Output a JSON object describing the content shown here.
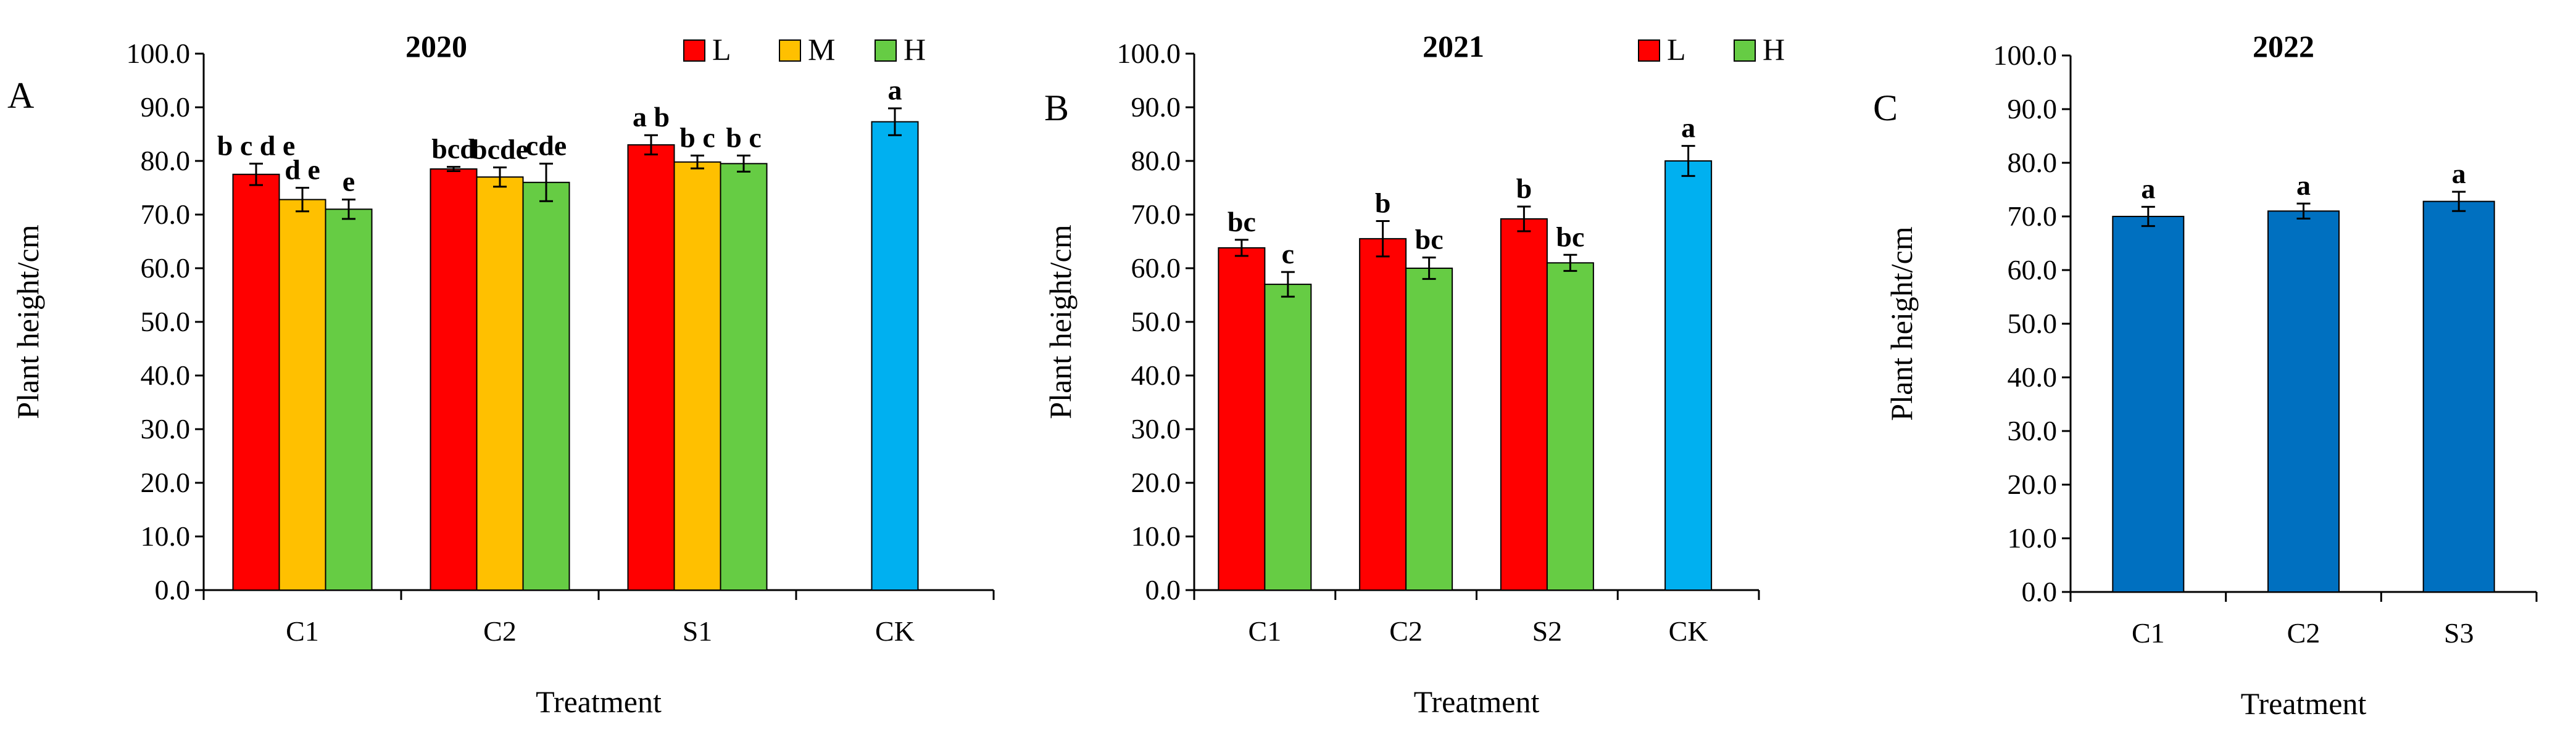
{
  "chart_data": [
    {
      "type": "bar",
      "panel": "A",
      "title": "2020",
      "xlabel": "Treatment",
      "ylabel": "Plant height/cm",
      "ylim": [
        0,
        100
      ],
      "ytick_step": 10,
      "ytick_labels": [
        "0.0",
        "10.0",
        "20.0",
        "30.0",
        "40.0",
        "50.0",
        "60.0",
        "70.0",
        "80.0",
        "90.0",
        "100.0"
      ],
      "grid": false,
      "legend_position": "top-center",
      "legend": [
        "L",
        "M",
        "H"
      ],
      "categories": [
        "C1",
        "C2",
        "S1",
        "CK"
      ],
      "series": [
        {
          "name": "L",
          "color": "#FF0000",
          "values": [
            77.5,
            78.5,
            83.0,
            null
          ],
          "errors": [
            2.0,
            0.4,
            1.8,
            null
          ],
          "labels": [
            "b c d e",
            "bcd",
            "a b",
            null
          ]
        },
        {
          "name": "M",
          "color": "#FFC000",
          "values": [
            72.8,
            77.0,
            79.8,
            null
          ],
          "errors": [
            2.2,
            1.8,
            1.2,
            null
          ],
          "labels": [
            "d e",
            "bcde",
            "b c",
            null
          ]
        },
        {
          "name": "H",
          "color": "#66CC44",
          "values": [
            71.0,
            76.0,
            79.5,
            null
          ],
          "errors": [
            1.8,
            3.5,
            1.5,
            null
          ],
          "labels": [
            "e",
            "cde",
            "b c",
            null
          ]
        },
        {
          "name": "CK",
          "color": "#00B0F0",
          "values": [
            null,
            null,
            null,
            87.3
          ],
          "errors": [
            null,
            null,
            null,
            2.5
          ],
          "labels": [
            null,
            null,
            null,
            "a"
          ]
        }
      ]
    },
    {
      "type": "bar",
      "panel": "B",
      "title": "2021",
      "xlabel": "Treatment",
      "ylabel": "Plant height/cm",
      "ylim": [
        0,
        100
      ],
      "ytick_step": 10,
      "ytick_labels": [
        "0.0",
        "10.0",
        "20.0",
        "30.0",
        "40.0",
        "50.0",
        "60.0",
        "70.0",
        "80.0",
        "90.0",
        "100.0"
      ],
      "grid": false,
      "legend_position": "top-center",
      "legend": [
        "L",
        "H"
      ],
      "categories": [
        "C1",
        "C2",
        "S2",
        "CK"
      ],
      "series": [
        {
          "name": "L",
          "color": "#FF0000",
          "values": [
            63.8,
            65.5,
            69.2,
            null
          ],
          "errors": [
            1.5,
            3.3,
            2.3,
            null
          ],
          "labels": [
            "bc",
            "b",
            "b",
            null
          ]
        },
        {
          "name": "H",
          "color": "#66CC44",
          "values": [
            57.0,
            60.0,
            61.0,
            null
          ],
          "errors": [
            2.3,
            2.0,
            1.5,
            null
          ],
          "labels": [
            "c",
            "bc",
            "bc",
            null
          ]
        },
        {
          "name": "CK",
          "color": "#00B0F0",
          "values": [
            null,
            null,
            null,
            80.0
          ],
          "errors": [
            null,
            null,
            null,
            2.8
          ],
          "labels": [
            null,
            null,
            null,
            "a"
          ]
        }
      ]
    },
    {
      "type": "bar",
      "panel": "C",
      "title": "2022",
      "xlabel": "Treatment",
      "ylabel": "Plant height/cm",
      "ylim": [
        0,
        100
      ],
      "ytick_step": 10,
      "ytick_labels": [
        "0.0",
        "10.0",
        "20.0",
        "30.0",
        "40.0",
        "50.0",
        "60.0",
        "70.0",
        "80.0",
        "90.0",
        "100.0"
      ],
      "grid": false,
      "legend": [],
      "categories": [
        "C1",
        "C2",
        "S3"
      ],
      "series": [
        {
          "name": "Plant height",
          "color": "#0070C0",
          "values": [
            70.0,
            71.0,
            72.8
          ],
          "errors": [
            1.8,
            1.4,
            1.8
          ],
          "labels": [
            "a",
            "a",
            "a"
          ]
        }
      ]
    }
  ]
}
